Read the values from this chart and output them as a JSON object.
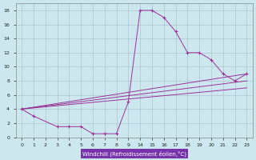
{
  "bg_color": "#cce8ee",
  "line_color": "#993399",
  "grid_color": "#aabbcc",
  "xlabel": "Windchill (Refroidissement éolien,°C)",
  "xlabel_bg": "#7733aa",
  "ylim": [
    0,
    19
  ],
  "yticks": [
    0,
    2,
    4,
    6,
    8,
    10,
    12,
    14,
    16,
    18
  ],
  "xtick_labels": [
    "0",
    "1",
    "2",
    "3",
    "4",
    "5",
    "6",
    "7",
    "8",
    "9",
    "14",
    "15",
    "16",
    "17",
    "18",
    "19",
    "20",
    "21",
    "22",
    "23"
  ],
  "n_xticks": 20,
  "line1_xi": [
    0,
    1,
    3,
    4,
    5,
    6,
    7,
    8,
    9,
    10,
    11,
    12,
    13,
    14,
    15,
    16,
    17,
    18,
    19
  ],
  "line1_y": [
    4,
    3,
    1.5,
    1.5,
    1.5,
    0.5,
    0.5,
    0.5,
    5,
    18,
    18,
    17,
    15,
    12,
    12,
    11,
    9,
    8,
    9
  ],
  "line2_xi": [
    0,
    19
  ],
  "line2_y": [
    4,
    9
  ],
  "line3_xi": [
    0,
    19
  ],
  "line3_y": [
    4,
    8
  ],
  "line4_xi": [
    0,
    19
  ],
  "line4_y": [
    4,
    7
  ]
}
